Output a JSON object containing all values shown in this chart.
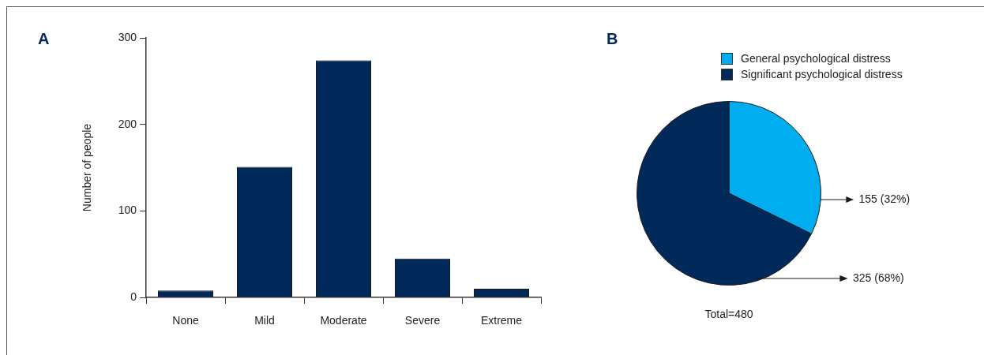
{
  "chart_data": [
    {
      "type": "bar",
      "title": "A",
      "ylabel": "Number of people",
      "categories": [
        "None",
        "Mild",
        "Moderate",
        "Severe",
        "Extreme"
      ],
      "values": [
        8,
        151,
        274,
        45,
        10
      ],
      "color": "#012a5a",
      "ylim": [
        0,
        300
      ],
      "yticks": [
        0,
        100,
        200,
        300
      ],
      "grid": false
    },
    {
      "type": "pie",
      "title": "B",
      "categories": [
        "General psychological distress",
        "Significant psychological distress"
      ],
      "values": [
        155,
        325
      ],
      "colors": [
        "#00aeef",
        "#012a5a"
      ],
      "value_labels": [
        "155 (32%)",
        "325 (68%)"
      ],
      "legend": "top right",
      "annotations": [
        "Total=480"
      ]
    }
  ]
}
